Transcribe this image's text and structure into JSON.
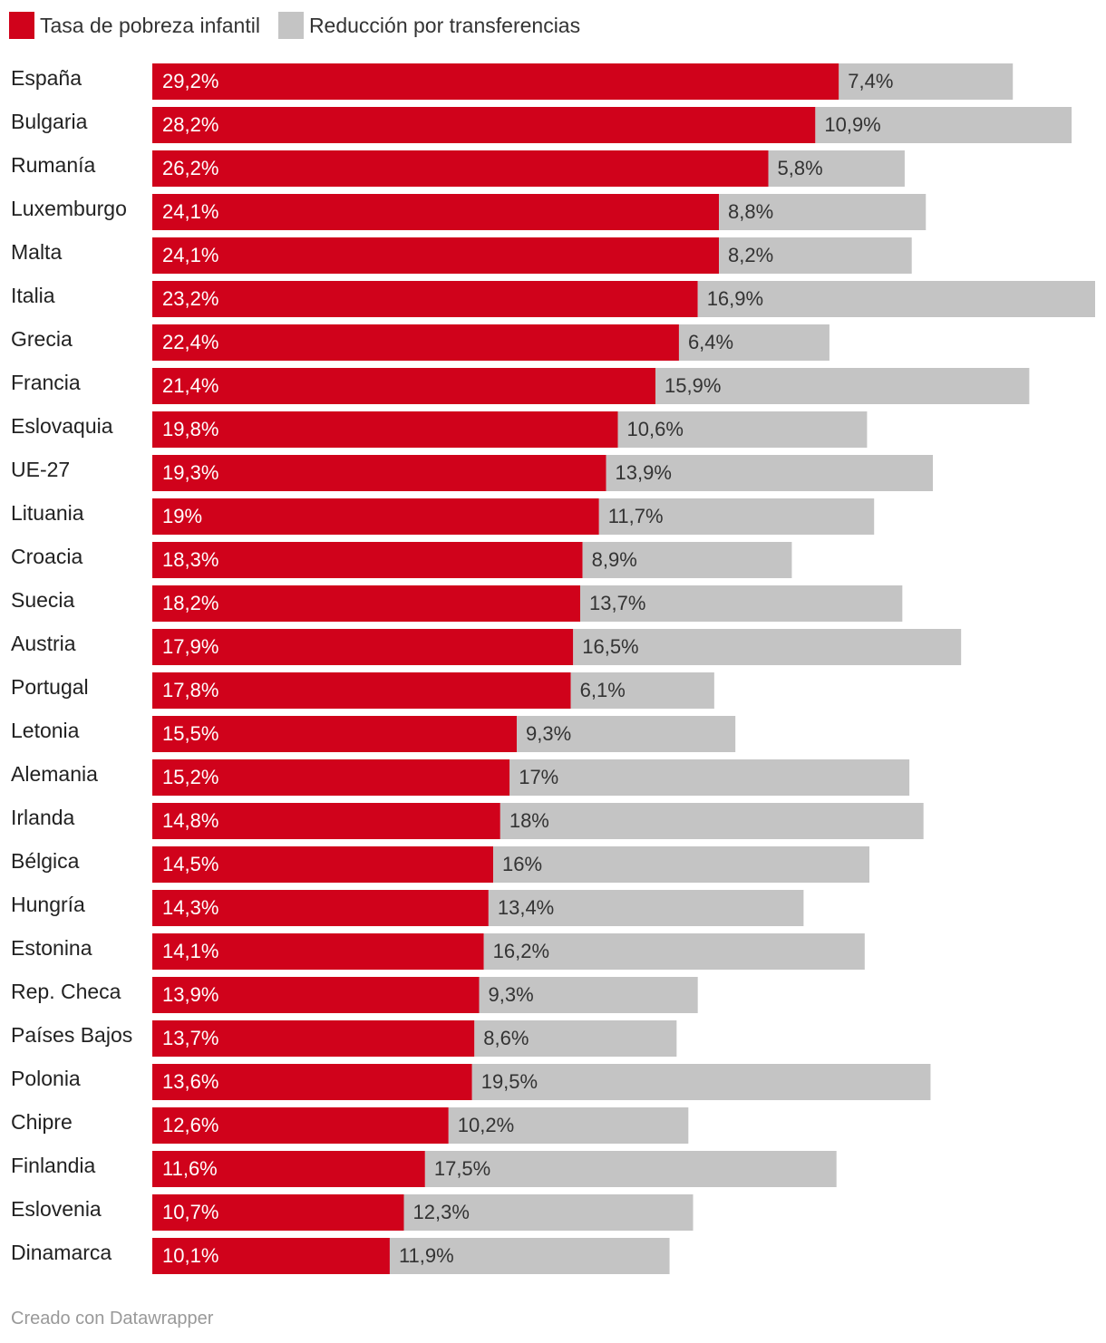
{
  "chart_data": {
    "type": "bar",
    "orientation": "horizontal",
    "stacked": true,
    "legend_position": "top-left",
    "categories": [
      "España",
      "Bulgaria",
      "Rumanía",
      "Luxemburgo",
      "Malta",
      "Italia",
      "Grecia",
      "Francia",
      "Eslovaquia",
      "UE-27",
      "Lituania",
      "Croacia",
      "Suecia",
      "Austria",
      "Portugal",
      "Letonia",
      "Alemania",
      "Irlanda",
      "Bélgica",
      "Hungría",
      "Estonina",
      "Rep. Checa",
      "Países Bajos",
      "Polonia",
      "Chipre",
      "Finlandia",
      "Eslovenia",
      "Dinamarca"
    ],
    "series": [
      {
        "name": "Tasa de pobreza infantil",
        "color": "#d0021b",
        "values": [
          29.2,
          28.2,
          26.2,
          24.1,
          24.1,
          23.2,
          22.4,
          21.4,
          19.8,
          19.3,
          19,
          18.3,
          18.2,
          17.9,
          17.8,
          15.5,
          15.2,
          14.8,
          14.5,
          14.3,
          14.1,
          13.9,
          13.7,
          13.6,
          12.6,
          11.6,
          10.7,
          10.1
        ],
        "labels": [
          "29,2%",
          "28,2%",
          "26,2%",
          "24,1%",
          "24,1%",
          "23,2%",
          "22,4%",
          "21,4%",
          "19,8%",
          "19,3%",
          "19%",
          "18,3%",
          "18,2%",
          "17,9%",
          "17,8%",
          "15,5%",
          "15,2%",
          "14,8%",
          "14,5%",
          "14,3%",
          "14,1%",
          "13,9%",
          "13,7%",
          "13,6%",
          "12,6%",
          "11,6%",
          "10,7%",
          "10,1%"
        ]
      },
      {
        "name": "Reducción por transferencias",
        "color": "#c4c4c4",
        "values": [
          7.4,
          10.9,
          5.8,
          8.8,
          8.2,
          16.9,
          6.4,
          15.9,
          10.6,
          13.9,
          11.7,
          8.9,
          13.7,
          16.5,
          6.1,
          9.3,
          17,
          18,
          16,
          13.4,
          16.2,
          9.3,
          8.6,
          19.5,
          10.2,
          17.5,
          12.3,
          11.9
        ],
        "labels": [
          "7,4%",
          "10,9%",
          "5,8%",
          "8,8%",
          "8,2%",
          "16,9%",
          "6,4%",
          "15,9%",
          "10,6%",
          "13,9%",
          "11,7%",
          "8,9%",
          "13,7%",
          "16,5%",
          "6,1%",
          "9,3%",
          "17%",
          "18%",
          "16%",
          "13,4%",
          "16,2%",
          "9,3%",
          "8,6%",
          "19,5%",
          "10,2%",
          "17,5%",
          "12,3%",
          "11,9%"
        ]
      }
    ],
    "xlim": [
      0,
      40.1
    ],
    "grid": false
  },
  "colors": {
    "text_on_red": "#ffffff",
    "text_on_gray": "#333333"
  },
  "footer": "Creado con Datawrapper"
}
